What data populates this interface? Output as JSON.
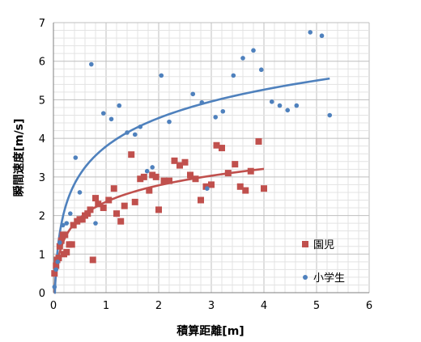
{
  "chart_data": {
    "type": "scatter",
    "xlabel": "積算距離[m]",
    "ylabel": "瞬間速度[m/s]",
    "xlim": [
      0,
      6
    ],
    "ylim": [
      0,
      7
    ],
    "x_ticks": [
      "0",
      "1",
      "2",
      "3",
      "4",
      "5",
      "6"
    ],
    "y_ticks": [
      "0",
      "1",
      "2",
      "3",
      "4",
      "5",
      "6",
      "7"
    ],
    "grid": true,
    "legend_position": "right",
    "series": [
      {
        "name": "園児",
        "marker": "square",
        "color": "#c0504d",
        "points": [
          [
            0.02,
            0.5
          ],
          [
            0.05,
            0.7
          ],
          [
            0.07,
            0.85
          ],
          [
            0.1,
            0.9
          ],
          [
            0.12,
            1.2
          ],
          [
            0.15,
            1.35
          ],
          [
            0.18,
            1.5
          ],
          [
            0.2,
            1.0
          ],
          [
            0.22,
            1.5
          ],
          [
            0.25,
            1.05
          ],
          [
            0.3,
            1.25
          ],
          [
            0.35,
            1.25
          ],
          [
            0.38,
            1.75
          ],
          [
            0.45,
            1.85
          ],
          [
            0.5,
            1.9
          ],
          [
            0.55,
            1.9
          ],
          [
            0.6,
            2.0
          ],
          [
            0.65,
            2.05
          ],
          [
            0.7,
            2.15
          ],
          [
            0.75,
            0.85
          ],
          [
            0.8,
            2.45
          ],
          [
            0.85,
            2.3
          ],
          [
            0.95,
            2.2
          ],
          [
            1.05,
            2.4
          ],
          [
            1.15,
            2.7
          ],
          [
            1.2,
            2.05
          ],
          [
            1.28,
            1.85
          ],
          [
            1.35,
            2.25
          ],
          [
            1.48,
            3.58
          ],
          [
            1.55,
            2.35
          ],
          [
            1.65,
            2.95
          ],
          [
            1.72,
            3.0
          ],
          [
            1.82,
            2.65
          ],
          [
            1.88,
            3.05
          ],
          [
            1.95,
            3.0
          ],
          [
            2.0,
            2.15
          ],
          [
            2.1,
            2.9
          ],
          [
            2.2,
            2.9
          ],
          [
            2.3,
            3.42
          ],
          [
            2.4,
            3.3
          ],
          [
            2.5,
            3.38
          ],
          [
            2.6,
            3.05
          ],
          [
            2.7,
            2.95
          ],
          [
            2.8,
            2.4
          ],
          [
            2.9,
            2.75
          ],
          [
            3.0,
            2.8
          ],
          [
            3.1,
            3.82
          ],
          [
            3.2,
            3.75
          ],
          [
            3.32,
            3.1
          ],
          [
            3.45,
            3.33
          ],
          [
            3.55,
            2.75
          ],
          [
            3.65,
            2.65
          ],
          [
            3.75,
            3.15
          ],
          [
            3.9,
            3.92
          ],
          [
            4.0,
            2.7
          ]
        ]
      },
      {
        "name": "小学生",
        "marker": "circle",
        "color": "#4f81bd",
        "points": [
          [
            0.02,
            0.15
          ],
          [
            0.05,
            0.6
          ],
          [
            0.08,
            0.8
          ],
          [
            0.12,
            1.3
          ],
          [
            0.18,
            1.75
          ],
          [
            0.25,
            1.8
          ],
          [
            0.32,
            2.05
          ],
          [
            0.42,
            3.5
          ],
          [
            0.5,
            2.6
          ],
          [
            0.72,
            5.92
          ],
          [
            0.8,
            1.8
          ],
          [
            0.95,
            4.65
          ],
          [
            1.1,
            4.5
          ],
          [
            1.25,
            4.85
          ],
          [
            1.4,
            4.15
          ],
          [
            1.55,
            4.1
          ],
          [
            1.65,
            4.3
          ],
          [
            1.78,
            3.15
          ],
          [
            1.88,
            3.25
          ],
          [
            2.05,
            5.63
          ],
          [
            2.2,
            4.43
          ],
          [
            2.65,
            5.15
          ],
          [
            2.82,
            4.93
          ],
          [
            2.92,
            2.7
          ],
          [
            3.08,
            4.55
          ],
          [
            3.22,
            4.7
          ],
          [
            3.42,
            5.63
          ],
          [
            3.6,
            6.08
          ],
          [
            3.8,
            6.28
          ],
          [
            3.95,
            5.78
          ],
          [
            4.15,
            4.95
          ],
          [
            4.3,
            4.85
          ],
          [
            4.45,
            4.73
          ],
          [
            4.62,
            4.85
          ],
          [
            4.88,
            6.75
          ],
          [
            5.1,
            6.66
          ],
          [
            5.25,
            4.6
          ]
        ]
      }
    ]
  }
}
